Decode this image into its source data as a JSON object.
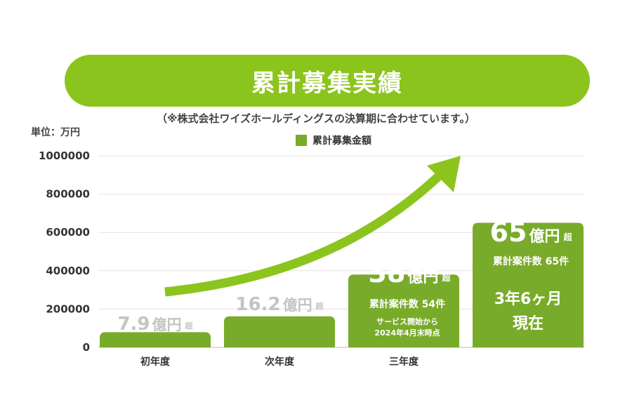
{
  "header": {
    "title": "累計募集実績",
    "note": "（※株式会社ワイズホールディングスの決算期に合わせています。）"
  },
  "chart_data": {
    "type": "bar",
    "unit_label": "単位：万円",
    "legend": [
      "累計募集金額"
    ],
    "categories": [
      "初年度",
      "次年度",
      "三年度",
      ""
    ],
    "values": [
      79000,
      162000,
      380000,
      650000
    ],
    "ylim": [
      0,
      1000000
    ],
    "yticks": [
      "1000000",
      "800000",
      "600000",
      "400000",
      "200000",
      "0"
    ],
    "grid": true,
    "trend_arrow": true,
    "colors": {
      "bar": "#78ab2a",
      "banner": "#8cc41e",
      "arrow": "#8cc41e",
      "gray_label": "#c4c4c4"
    },
    "annotations": [
      {
        "amount": "7.9",
        "unit": "億円",
        "suffix": "超"
      },
      {
        "amount": "16.2",
        "unit": "億円",
        "suffix": "超"
      },
      {
        "amount": "38",
        "unit": "億円",
        "suffix": "超",
        "count": "累計案件数 54件",
        "note_line1": "サービス開始から",
        "note_line2": "2024年4月末時点"
      },
      {
        "amount": "65",
        "unit": "億円",
        "suffix": "超",
        "count": "累計案件数 65件",
        "period_line1": "3年6ヶ月",
        "period_line2": "現在"
      }
    ]
  }
}
